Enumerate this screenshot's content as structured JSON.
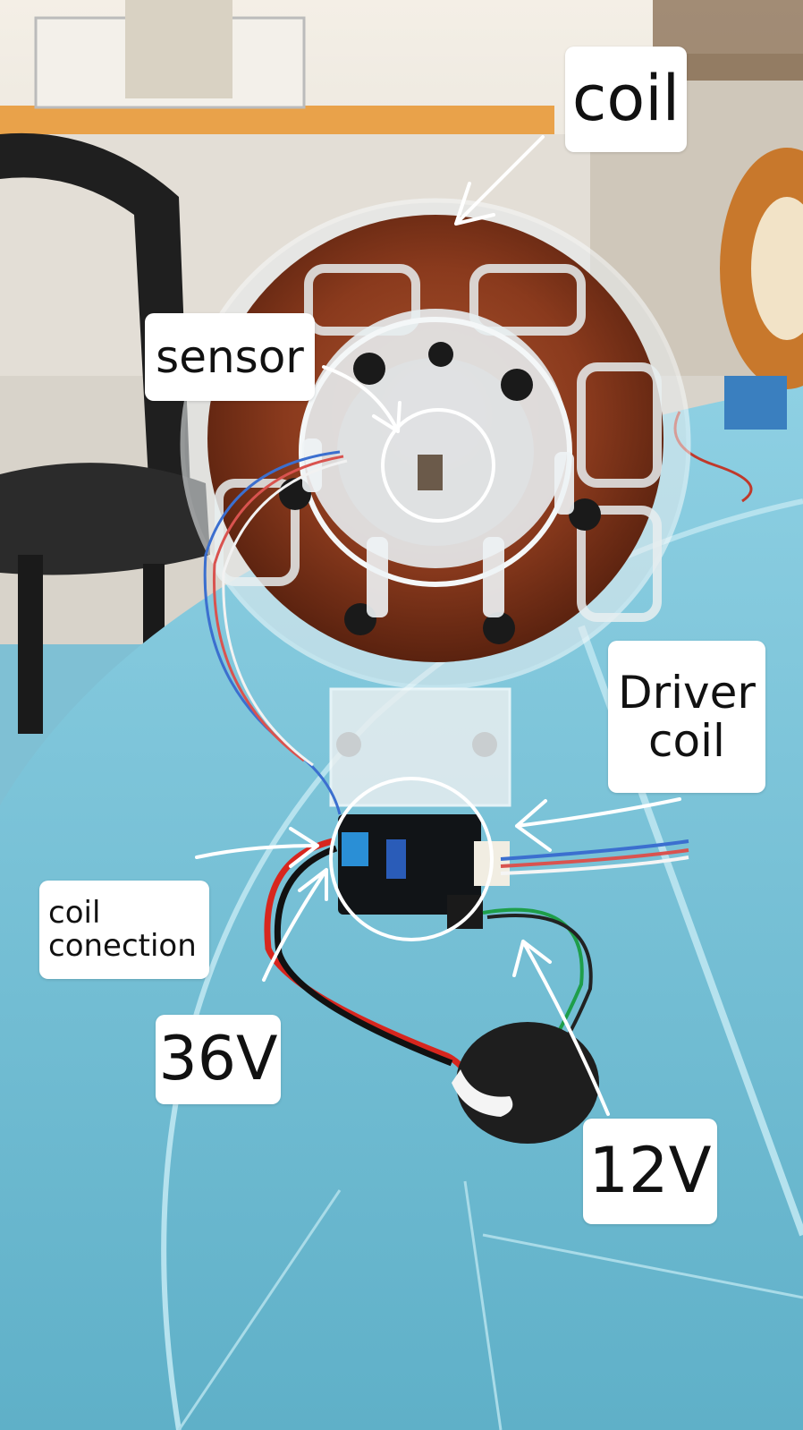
{
  "labels": {
    "coil": "coil",
    "sensor": "sensor",
    "driver_coil": "Driver\ncoil",
    "coil_connection": "coil\nconection",
    "v36": "36V",
    "v12": "12V"
  },
  "colors": {
    "table": "#7fc0d4",
    "wall": "#f1ebdf",
    "wood_counter": "#e9a24a",
    "copper": "#8a3a1d",
    "acrylic": "#e9eef0",
    "screw": "#1a1a1a",
    "pcb": "#111417",
    "annotation": "#ffffff"
  }
}
